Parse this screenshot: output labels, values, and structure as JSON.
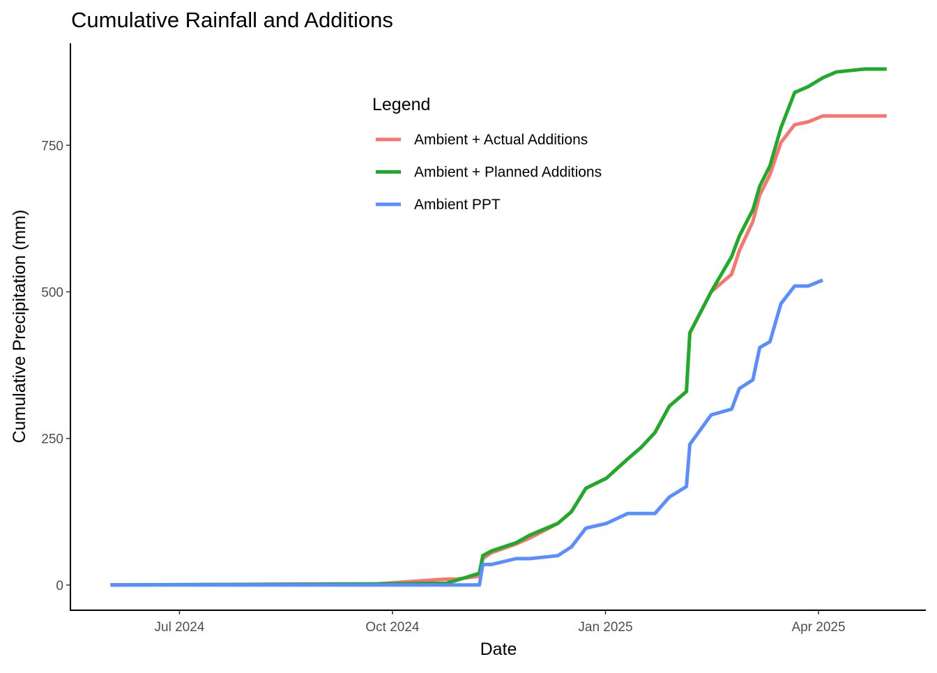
{
  "chart_data": {
    "type": "line",
    "title": "Cumulative Rainfall and Additions",
    "x_label": "Date",
    "y_label": "Cumulative Precipitation (mm)",
    "legend_title": "Legend",
    "x": [
      2024.419,
      2024.731,
      2024.813,
      2024.825,
      2024.852,
      2024.856,
      2024.866,
      2024.895,
      2024.911,
      2024.944,
      2024.96,
      2024.977,
      2025.001,
      2025.026,
      2025.042,
      2025.058,
      2025.075,
      2025.095,
      2025.099,
      2025.124,
      2025.148,
      2025.157,
      2025.173,
      2025.181,
      2025.193,
      2025.206,
      2025.222,
      2025.238,
      2025.255,
      2025.271,
      2025.304,
      2025.33
    ],
    "series": [
      {
        "name": "Ambient + Actual Additions",
        "color": "#F8766D",
        "values": [
          0,
          2,
          10,
          10,
          15,
          45,
          55,
          70,
          80,
          105,
          125,
          165,
          182,
          215,
          235,
          260,
          305,
          330,
          430,
          500,
          530,
          570,
          620,
          665,
          700,
          755,
          785,
          790,
          800,
          800,
          800,
          800
        ]
      },
      {
        "name": "Ambient + Planned Additions",
        "color": "#1FAA2A",
        "values": [
          0,
          2,
          3,
          8,
          20,
          50,
          58,
          72,
          85,
          105,
          125,
          165,
          182,
          215,
          235,
          260,
          305,
          330,
          430,
          500,
          560,
          595,
          640,
          680,
          715,
          780,
          840,
          850,
          865,
          875,
          880,
          880
        ]
      },
      {
        "name": "Ambient PPT",
        "color": "#5A8DFF",
        "values": [
          0,
          0,
          0,
          0,
          0,
          35,
          35,
          45,
          45,
          50,
          65,
          97,
          105,
          122,
          122,
          122,
          150,
          168,
          240,
          290,
          300,
          335,
          350,
          405,
          415,
          480,
          510,
          510,
          520,
          null,
          null,
          null
        ]
      }
    ],
    "xlim": [
      2024.372,
      2025.376
    ],
    "xticks": [
      {
        "value": 2024.5,
        "label": "Jul 2024"
      },
      {
        "value": 2024.75,
        "label": "Oct 2024"
      },
      {
        "value": 2025.0,
        "label": "Jan 2025"
      },
      {
        "value": 2025.25,
        "label": "Apr 2025"
      }
    ],
    "ylim": [
      -43,
      924
    ],
    "yticks": [
      0,
      250,
      500,
      750
    ],
    "grid": false
  }
}
